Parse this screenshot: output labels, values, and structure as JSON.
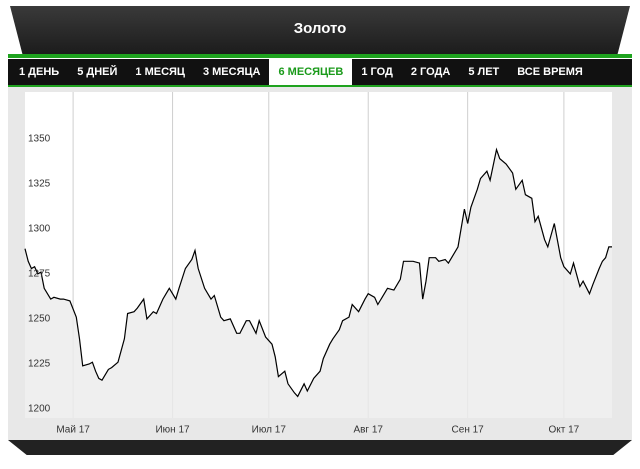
{
  "title": "Золото",
  "tabs": [
    "1 ДЕНЬ",
    "5 ДНЕЙ",
    "1 МЕСЯЦ",
    "3 МЕСЯЦА",
    "6 МЕСЯЦЕВ",
    "1 ГОД",
    "2 ГОДА",
    "5 ЛЕТ",
    "ВСЕ ВРЕМЯ"
  ],
  "active_tab": 4,
  "chart_data": {
    "type": "line",
    "color": "#000000",
    "fill": "#ebebeb",
    "x": [
      0,
      1,
      2,
      3,
      4,
      5,
      6,
      8,
      9,
      11,
      12,
      14,
      16,
      17,
      18,
      20,
      21,
      22,
      23,
      24,
      26,
      27,
      29,
      31,
      32,
      34,
      35,
      37,
      38,
      40,
      41,
      43,
      44,
      45,
      47,
      48,
      50,
      52,
      53,
      54,
      56,
      58,
      59,
      61,
      62,
      64,
      66,
      67,
      69,
      70,
      72,
      73,
      75,
      77,
      78,
      79,
      81,
      82,
      84,
      85,
      87,
      88,
      90,
      92,
      93,
      95,
      96,
      98,
      99,
      101,
      102,
      104,
      106,
      107,
      109,
      110,
      112,
      113,
      115,
      117,
      118,
      120,
      121,
      123,
      124,
      125,
      126,
      128,
      129,
      131,
      132,
      134,
      135,
      137,
      138,
      139,
      141,
      142,
      144,
      145,
      147,
      148,
      150,
      152,
      153,
      155,
      156,
      158,
      159,
      160,
      162,
      163,
      165,
      167,
      168,
      170,
      171,
      173,
      174,
      176,
      177,
      179,
      180,
      181,
      182,
      183
    ],
    "values": [
      1289,
      1282,
      1278,
      1279,
      1275,
      1276,
      1267,
      1261,
      1262,
      1261,
      1261,
      1260,
      1251,
      1239,
      1224,
      1225,
      1226,
      1221,
      1217,
      1216,
      1222,
      1223,
      1226,
      1239,
      1253,
      1254,
      1256,
      1261,
      1250,
      1254,
      1253,
      1261,
      1264,
      1267,
      1261,
      1267,
      1278,
      1283,
      1288,
      1278,
      1267,
      1261,
      1263,
      1251,
      1249,
      1250,
      1242,
      1242,
      1249,
      1249,
      1242,
      1249,
      1240,
      1236,
      1229,
      1218,
      1221,
      1214,
      1209,
      1207,
      1214,
      1210,
      1217,
      1221,
      1228,
      1236,
      1239,
      1244,
      1249,
      1251,
      1258,
      1254,
      1261,
      1264,
      1262,
      1258,
      1264,
      1267,
      1266,
      1272,
      1282,
      1282,
      1282,
      1281,
      1261,
      1271,
      1284,
      1284,
      1282,
      1283,
      1281,
      1287,
      1290,
      1311,
      1303,
      1312,
      1322,
      1328,
      1332,
      1327,
      1344,
      1339,
      1336,
      1331,
      1322,
      1327,
      1319,
      1317,
      1304,
      1307,
      1294,
      1290,
      1303,
      1284,
      1279,
      1275,
      1281,
      1268,
      1271,
      1264,
      1269,
      1278,
      1282,
      1284,
      1290,
      1290
    ],
    "xlim": [
      0,
      183
    ],
    "xticks": [
      {
        "value": 15,
        "label": "Май 17"
      },
      {
        "value": 46,
        "label": "Июн 17"
      },
      {
        "value": 76,
        "label": "Июл 17"
      },
      {
        "value": 107,
        "label": "Авг 17"
      },
      {
        "value": 138,
        "label": "Сен 17"
      },
      {
        "value": 168,
        "label": "Окт 17"
      }
    ],
    "ylim": [
      1195,
      1376
    ],
    "yticks": [
      1200,
      1225,
      1250,
      1275,
      1300,
      1325,
      1350
    ],
    "grid": true
  }
}
